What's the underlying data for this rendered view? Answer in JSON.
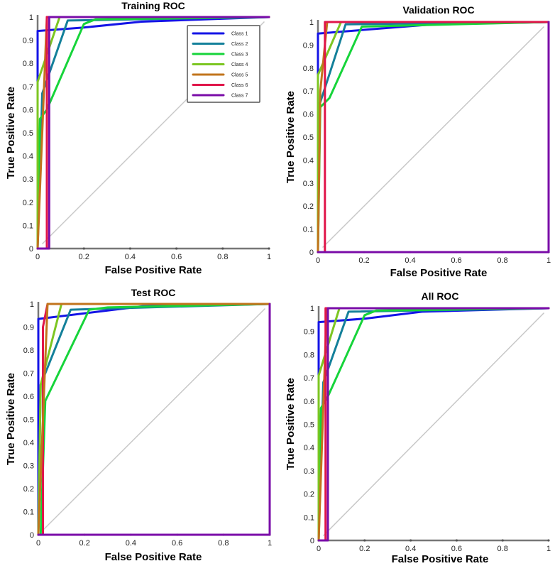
{
  "colors": {
    "class1": "#1414e6",
    "class2": "#13809a",
    "class3": "#16d43a",
    "class4": "#7cc622",
    "class5": "#c2741c",
    "class6": "#e0164a",
    "class7": "#7a0ca8",
    "diagonal": "#c8c8c8",
    "axis": "#777777"
  },
  "chart_data": [
    {
      "type": "line",
      "title": "Training ROC",
      "xlabel": "False Positive Rate",
      "ylabel": "True Positive Rate",
      "xlim": [
        0,
        1
      ],
      "ylim": [
        0,
        1
      ],
      "xticks": [
        "0",
        "0.2",
        "0.4",
        "0.6",
        "0.8",
        "1"
      ],
      "yticks": [
        "0",
        "0.1",
        "0.2",
        "0.3",
        "0.4",
        "0.5",
        "0.6",
        "0.7",
        "0.8",
        "0.9",
        "1"
      ],
      "legend": "top-right",
      "grid": false,
      "series": [
        {
          "name": "Class 1",
          "x": [
            0,
            0,
            0.2,
            0.45,
            1
          ],
          "y": [
            0,
            0.94,
            0.955,
            0.98,
            1
          ]
        },
        {
          "name": "Class 2",
          "x": [
            0,
            0.02,
            0.13,
            1
          ],
          "y": [
            0,
            0.67,
            0.985,
            1
          ]
        },
        {
          "name": "Class 3",
          "x": [
            0,
            0.01,
            0.04,
            0.2,
            0.25,
            1
          ],
          "y": [
            0,
            0.56,
            0.6,
            0.97,
            0.99,
            1
          ]
        },
        {
          "name": "Class 4",
          "x": [
            0,
            0,
            0.095,
            1
          ],
          "y": [
            0,
            0.72,
            1,
            1
          ]
        },
        {
          "name": "Class 5",
          "x": [
            0,
            0.04,
            1
          ],
          "y": [
            0,
            1,
            1
          ]
        },
        {
          "name": "Class 6",
          "x": [
            0.04,
            0.04,
            1
          ],
          "y": [
            0,
            1,
            1
          ]
        },
        {
          "name": "Class 7",
          "x": [
            0,
            0.05,
            0.05,
            1
          ],
          "y": [
            0,
            0,
            1,
            1
          ]
        }
      ]
    },
    {
      "type": "line",
      "title": "Validation ROC",
      "xlabel": "False Positive Rate",
      "ylabel": "True Positive Rate",
      "xlim": [
        0,
        1
      ],
      "ylim": [
        0,
        1
      ],
      "xticks": [
        "0",
        "0.2",
        "0.4",
        "0.6",
        "0.8",
        "1"
      ],
      "yticks": [
        "0",
        "0.1",
        "0.2",
        "0.3",
        "0.4",
        "0.5",
        "0.6",
        "0.7",
        "0.8",
        "0.9",
        "1"
      ],
      "grid": false,
      "series": [
        {
          "name": "Class 1",
          "x": [
            0,
            0,
            0.5,
            1
          ],
          "y": [
            0,
            0.95,
            0.99,
            1
          ]
        },
        {
          "name": "Class 2",
          "x": [
            0,
            0,
            0.12,
            1
          ],
          "y": [
            0,
            0.62,
            0.99,
            1
          ]
        },
        {
          "name": "Class 3",
          "x": [
            0,
            0.01,
            0.05,
            0.19,
            1
          ],
          "y": [
            0,
            0.63,
            0.67,
            0.98,
            1
          ]
        },
        {
          "name": "Class 4",
          "x": [
            0,
            0,
            0.1,
            1
          ],
          "y": [
            0,
            0.77,
            1,
            1
          ]
        },
        {
          "name": "Class 5",
          "x": [
            0,
            0.01,
            0.04
          ],
          "y": [
            0,
            0.7,
            1
          ]
        },
        {
          "name": "Class 6",
          "x": [
            0.03,
            0.03,
            1
          ],
          "y": [
            0,
            1,
            1
          ]
        },
        {
          "name": "Class 7",
          "x": [
            0,
            1,
            1
          ],
          "y": [
            0,
            0,
            1
          ]
        }
      ]
    },
    {
      "type": "line",
      "title": "Test ROC",
      "xlabel": "False Positive Rate",
      "ylabel": "True Positive Rate",
      "xlim": [
        0,
        1
      ],
      "ylim": [
        0,
        1
      ],
      "xticks": [
        "0",
        "0.2",
        "0.4",
        "0.6",
        "0.8",
        "1"
      ],
      "yticks": [
        "0",
        "0.1",
        "0.2",
        "0.3",
        "0.4",
        "0.5",
        "0.6",
        "0.7",
        "0.8",
        "0.9",
        "1"
      ],
      "grid": false,
      "series": [
        {
          "name": "Class 1",
          "x": [
            0,
            0,
            0.45,
            1
          ],
          "y": [
            0,
            0.935,
            0.99,
            1
          ]
        },
        {
          "name": "Class 2",
          "x": [
            0,
            0.01,
            0.14,
            0.3,
            1
          ],
          "y": [
            0,
            0.65,
            0.975,
            0.98,
            1
          ]
        },
        {
          "name": "Class 3",
          "x": [
            0.01,
            0.03,
            0.22,
            0.3,
            1
          ],
          "y": [
            0,
            0.58,
            0.975,
            0.985,
            1
          ]
        },
        {
          "name": "Class 4",
          "x": [
            0,
            0.01,
            0.1,
            1
          ],
          "y": [
            0,
            0.65,
            1,
            1
          ]
        },
        {
          "name": "Class 6",
          "x": [
            0.02,
            0.02,
            0.04
          ],
          "y": [
            0,
            0.9,
            1
          ]
        },
        {
          "name": "Class 5",
          "x": [
            0,
            0.04,
            1
          ],
          "y": [
            0,
            1,
            1
          ]
        },
        {
          "name": "Class 7",
          "x": [
            0,
            1,
            1
          ],
          "y": [
            0,
            0,
            1
          ]
        }
      ]
    },
    {
      "type": "line",
      "title": "All ROC",
      "xlabel": "False Positive Rate",
      "ylabel": "True Positive Rate",
      "xlim": [
        0,
        1
      ],
      "ylim": [
        0,
        1
      ],
      "xticks": [
        "0",
        "0.2",
        "0.4",
        "0.6",
        "0.8",
        "1"
      ],
      "yticks": [
        "0",
        "0.1",
        "0.2",
        "0.3",
        "0.4",
        "0.5",
        "0.6",
        "0.7",
        "0.8",
        "0.9",
        "1"
      ],
      "grid": false,
      "series": [
        {
          "name": "Class 1",
          "x": [
            0,
            0,
            0.2,
            0.45,
            1
          ],
          "y": [
            0,
            0.94,
            0.955,
            0.985,
            1
          ]
        },
        {
          "name": "Class 2",
          "x": [
            0,
            0.02,
            0.13,
            1
          ],
          "y": [
            0,
            0.68,
            0.985,
            1
          ]
        },
        {
          "name": "Class 3",
          "x": [
            0,
            0.01,
            0.04,
            0.2,
            0.25,
            1
          ],
          "y": [
            0,
            0.57,
            0.62,
            0.97,
            0.99,
            1
          ]
        },
        {
          "name": "Class 4",
          "x": [
            0,
            0,
            0.09,
            1
          ],
          "y": [
            0,
            0.71,
            1,
            1
          ]
        },
        {
          "name": "Class 5",
          "x": [
            0,
            0.035,
            1
          ],
          "y": [
            0,
            1,
            1
          ]
        },
        {
          "name": "Class 6",
          "x": [
            0.03,
            0.03,
            1
          ],
          "y": [
            0,
            1,
            1
          ]
        },
        {
          "name": "Class 7",
          "x": [
            0,
            0.04,
            0.04,
            1
          ],
          "y": [
            0,
            0,
            1,
            1
          ]
        }
      ]
    }
  ]
}
